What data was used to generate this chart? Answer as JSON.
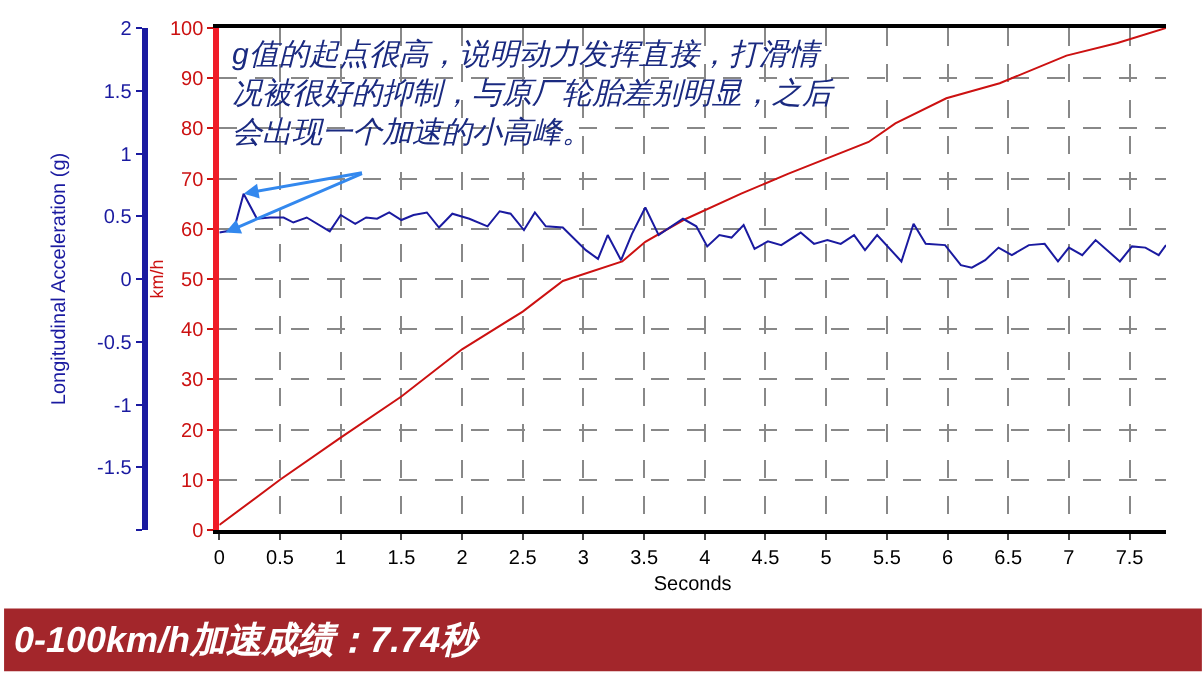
{
  "chart_data": {
    "type": "line",
    "title": "0-100km/h加速成绩：7.74秒",
    "xlabel": "Seconds",
    "ylabel": "Longitudinal Acceleration (g)",
    "y2label": "km/h",
    "annotations": [
      {
        "text": "g值的起点很高，说明动力发挥直接，打滑情况被很好的抑制，与原厂轮胎差别明显，之后会出现一个加速的小高峰。",
        "x": 0.2,
        "y": 0.68
      }
    ],
    "xlim": [
      0,
      7.8
    ],
    "xticks": [
      0,
      0.5,
      1,
      1.5,
      2,
      2.5,
      3,
      3.5,
      4,
      4.5,
      5,
      5.5,
      6,
      6.5,
      7,
      7.5
    ],
    "y2lim": [
      0,
      100
    ],
    "y2ticks": [
      0,
      10,
      20,
      30,
      40,
      50,
      60,
      70,
      80,
      90,
      100
    ],
    "ylim": [
      -2,
      2
    ],
    "yticks": [
      {
        "value": -2,
        "label": null
      },
      -1.5,
      -1,
      -0.5,
      0,
      0.5,
      1,
      1.5,
      2
    ],
    "grid": true,
    "line_style": "solid",
    "marker": "none",
    "series": [
      {
        "color": "#cc1111",
        "axis": "y2",
        "x": [
          0,
          0.5,
          1,
          1.5,
          2,
          2.5,
          2.83,
          3.32,
          3.51,
          3.82,
          4.3,
          4.69,
          5.35,
          5.57,
          5.99,
          6.43,
          6.98,
          7.4,
          7.8
        ],
        "values": [
          1,
          10,
          18.4,
          26.6,
          36,
          43.5,
          49.6,
          53.5,
          57.4,
          61.7,
          67,
          71,
          77.3,
          81,
          86,
          89,
          94.5,
          97,
          100
        ]
      },
      {
        "color": "#1a1aa0",
        "axis": "y",
        "x": [
          0,
          0.12,
          0.2,
          0.31,
          0.42,
          0.53,
          0.61,
          0.72,
          0.91,
          1.0,
          1.12,
          1.21,
          1.3,
          1.4,
          1.5,
          1.6,
          1.71,
          1.81,
          1.92,
          2.06,
          2.21,
          2.31,
          2.4,
          2.51,
          2.6,
          2.69,
          2.83,
          3.02,
          3.12,
          3.2,
          3.31,
          3.4,
          3.51,
          3.62,
          3.71,
          3.82,
          3.93,
          4.02,
          4.12,
          4.22,
          4.32,
          4.41,
          4.52,
          4.63,
          4.79,
          4.9,
          5.01,
          5.12,
          5.23,
          5.32,
          5.42,
          5.62,
          5.72,
          5.82,
          5.98,
          6.11,
          6.2,
          6.31,
          6.42,
          6.53,
          6.67,
          6.8,
          6.91,
          7.0,
          7.11,
          7.22,
          7.42,
          7.52,
          7.63,
          7.74,
          7.8
        ],
        "values": [
          0.37,
          0.39,
          0.68,
          0.48,
          0.49,
          0.49,
          0.45,
          0.49,
          0.38,
          0.51,
          0.44,
          0.49,
          0.48,
          0.53,
          0.47,
          0.51,
          0.53,
          0.41,
          0.52,
          0.48,
          0.42,
          0.54,
          0.52,
          0.39,
          0.53,
          0.42,
          0.41,
          0.23,
          0.16,
          0.35,
          0.15,
          0.36,
          0.57,
          0.35,
          0.41,
          0.48,
          0.42,
          0.26,
          0.35,
          0.33,
          0.43,
          0.24,
          0.3,
          0.27,
          0.37,
          0.28,
          0.31,
          0.28,
          0.35,
          0.23,
          0.35,
          0.14,
          0.44,
          0.28,
          0.27,
          0.11,
          0.09,
          0.15,
          0.25,
          0.19,
          0.27,
          0.28,
          0.14,
          0.25,
          0.19,
          0.31,
          0.14,
          0.26,
          0.25,
          0.19,
          0.27
        ]
      }
    ]
  }
}
